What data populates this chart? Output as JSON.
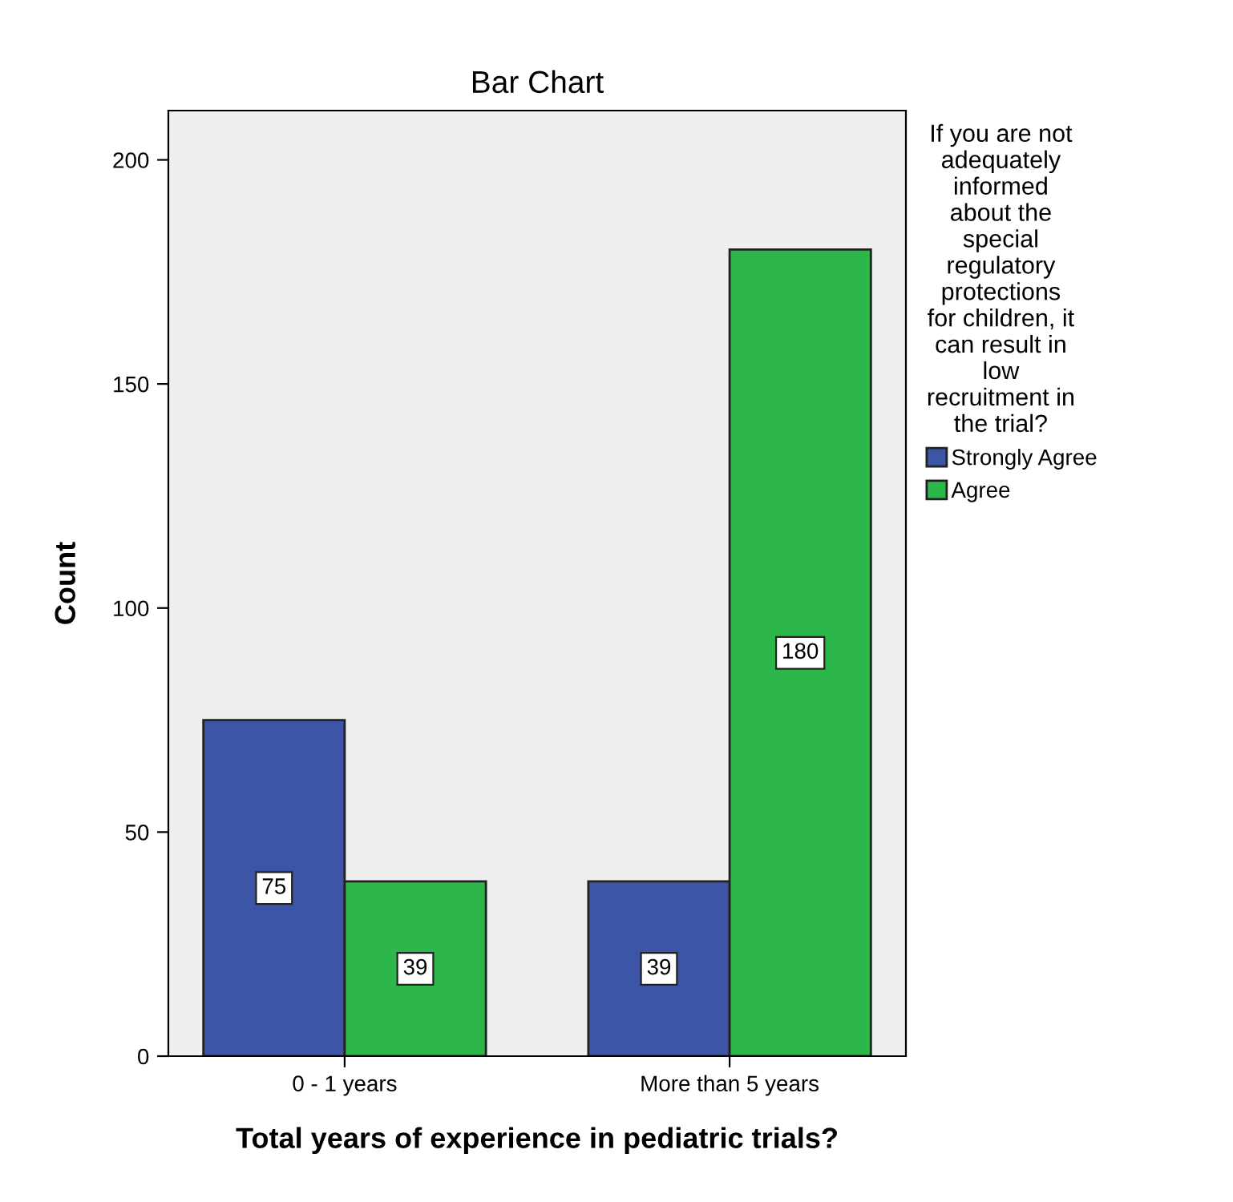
{
  "chart_data": {
    "type": "bar",
    "title": "Bar Chart",
    "xlabel": "Total years of experience in pediatric trials?",
    "ylabel": "Count",
    "legend_title": "If you are not\nadequately\ninformed\nabout the\nspecial\nregulatory\nprotections\nfor children, it\ncan result in\nlow\nrecruitment in\nthe trial?",
    "categories": [
      "0 - 1 years",
      "More than 5 years"
    ],
    "series": [
      {
        "name": "Strongly Agree",
        "color": "#3d55a6",
        "values": [
          75,
          39
        ]
      },
      {
        "name": "Agree",
        "color": "#2db64a",
        "values": [
          39,
          180
        ]
      }
    ],
    "ylim": [
      0,
      211
    ],
    "yticks": [
      0,
      50,
      100,
      150,
      200
    ],
    "data_labels": true,
    "grid": false,
    "legend": "right"
  }
}
